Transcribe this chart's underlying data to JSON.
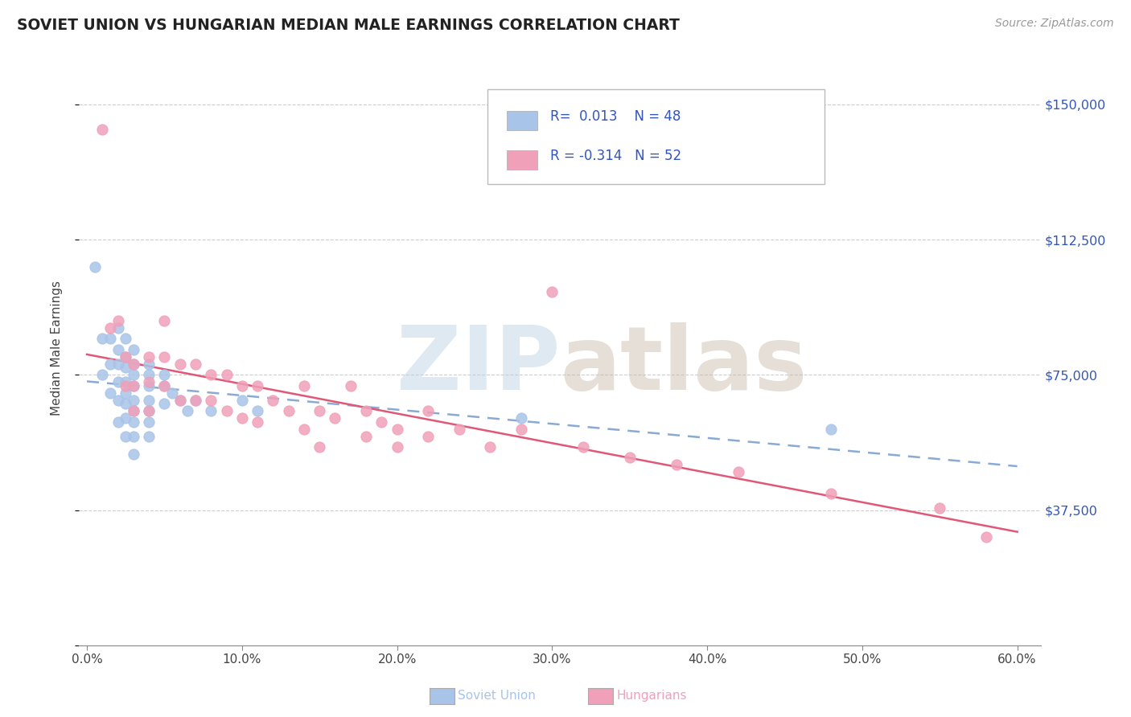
{
  "title": "SOVIET UNION VS HUNGARIAN MEDIAN MALE EARNINGS CORRELATION CHART",
  "source_text": "Source: ZipAtlas.com",
  "ylabel": "Median Male Earnings",
  "xlim": [
    -0.005,
    0.615
  ],
  "ylim": [
    0,
    165000
  ],
  "xtick_labels": [
    "0.0%",
    "",
    "10.0%",
    "",
    "20.0%",
    "",
    "30.0%",
    "",
    "40.0%",
    "",
    "50.0%",
    "",
    "60.0%"
  ],
  "xtick_values": [
    0.0,
    0.05,
    0.1,
    0.15,
    0.2,
    0.25,
    0.3,
    0.35,
    0.4,
    0.45,
    0.5,
    0.55,
    0.6
  ],
  "ytick_values": [
    0,
    37500,
    75000,
    112500,
    150000
  ],
  "ytick_labels": [
    "",
    "$37,500",
    "$75,000",
    "$112,500",
    "$150,000"
  ],
  "R_soviet": 0.013,
  "N_soviet": 48,
  "R_hungarian": -0.314,
  "N_hungarian": 52,
  "soviet_color": "#a8c4e8",
  "hungarian_color": "#f0a0b8",
  "soviet_line_color": "#8aaad4",
  "hungarian_line_color": "#e05878",
  "legend_text_color": "#3355bb",
  "title_color": "#222222",
  "grid_color": "#c8c8c8",
  "background_color": "#ffffff",
  "soviet_x": [
    0.005,
    0.01,
    0.01,
    0.015,
    0.015,
    0.015,
    0.02,
    0.02,
    0.02,
    0.02,
    0.02,
    0.02,
    0.025,
    0.025,
    0.025,
    0.025,
    0.025,
    0.025,
    0.025,
    0.025,
    0.03,
    0.03,
    0.03,
    0.03,
    0.03,
    0.03,
    0.03,
    0.03,
    0.03,
    0.04,
    0.04,
    0.04,
    0.04,
    0.04,
    0.04,
    0.04,
    0.05,
    0.05,
    0.05,
    0.055,
    0.06,
    0.065,
    0.07,
    0.08,
    0.1,
    0.11,
    0.28,
    0.48
  ],
  "soviet_y": [
    105000,
    85000,
    75000,
    85000,
    78000,
    70000,
    88000,
    82000,
    78000,
    73000,
    68000,
    62000,
    85000,
    80000,
    77000,
    73000,
    70000,
    67000,
    63000,
    58000,
    82000,
    78000,
    75000,
    72000,
    68000,
    65000,
    62000,
    58000,
    53000,
    78000,
    75000,
    72000,
    68000,
    65000,
    62000,
    58000,
    75000,
    72000,
    67000,
    70000,
    68000,
    65000,
    68000,
    65000,
    68000,
    65000,
    63000,
    60000
  ],
  "hungarian_x": [
    0.01,
    0.015,
    0.02,
    0.025,
    0.025,
    0.03,
    0.03,
    0.03,
    0.04,
    0.04,
    0.04,
    0.05,
    0.05,
    0.05,
    0.06,
    0.06,
    0.07,
    0.07,
    0.08,
    0.08,
    0.09,
    0.09,
    0.1,
    0.1,
    0.11,
    0.11,
    0.12,
    0.13,
    0.14,
    0.14,
    0.15,
    0.15,
    0.16,
    0.17,
    0.18,
    0.18,
    0.19,
    0.2,
    0.2,
    0.22,
    0.22,
    0.24,
    0.26,
    0.28,
    0.3,
    0.32,
    0.35,
    0.38,
    0.42,
    0.48,
    0.55,
    0.58
  ],
  "hungarian_y": [
    143000,
    88000,
    90000,
    80000,
    72000,
    78000,
    72000,
    65000,
    80000,
    73000,
    65000,
    90000,
    80000,
    72000,
    78000,
    68000,
    78000,
    68000,
    75000,
    68000,
    75000,
    65000,
    72000,
    63000,
    72000,
    62000,
    68000,
    65000,
    72000,
    60000,
    65000,
    55000,
    63000,
    72000,
    65000,
    58000,
    62000,
    60000,
    55000,
    65000,
    58000,
    60000,
    55000,
    60000,
    98000,
    55000,
    52000,
    50000,
    48000,
    42000,
    38000,
    30000
  ]
}
